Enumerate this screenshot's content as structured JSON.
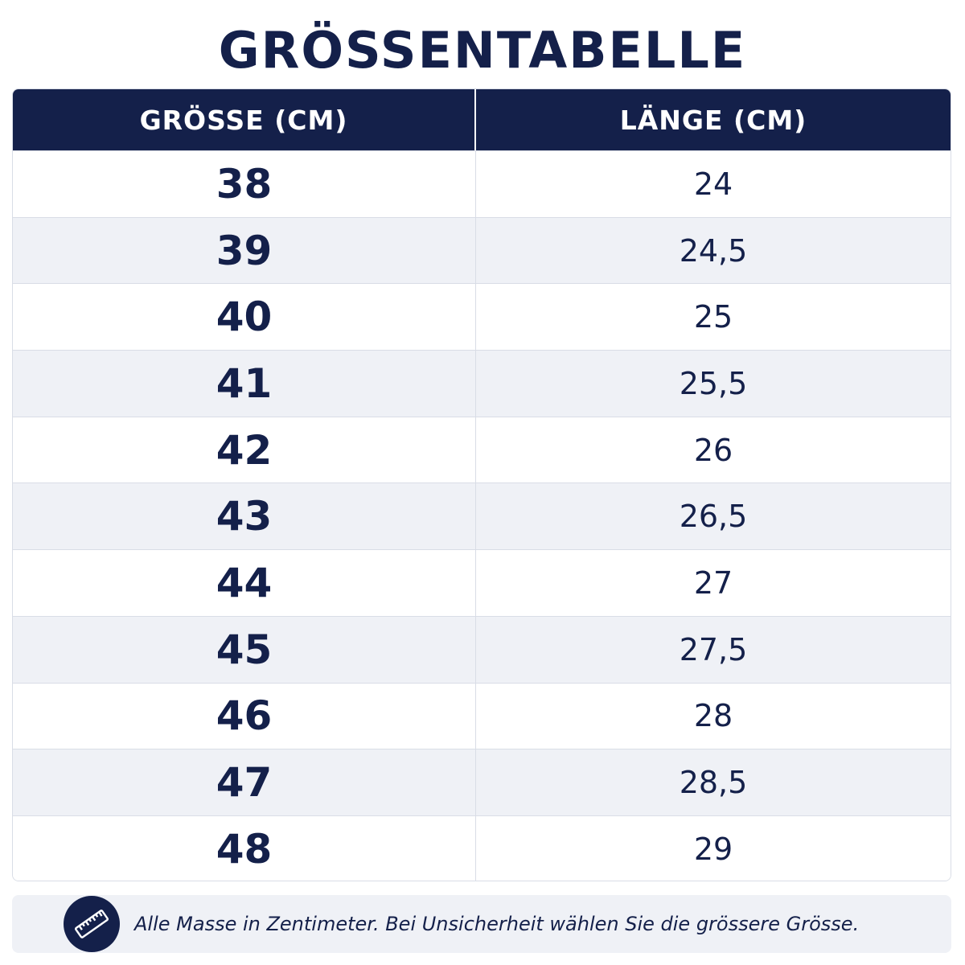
{
  "title": "GRÖSSENTABELLE",
  "table": {
    "headers": [
      "GRÖSSE (CM)",
      "LÄNGE (CM)"
    ],
    "rows": [
      {
        "size": "38",
        "length": "24"
      },
      {
        "size": "39",
        "length": "24,5"
      },
      {
        "size": "40",
        "length": "25"
      },
      {
        "size": "41",
        "length": "25,5"
      },
      {
        "size": "42",
        "length": "26"
      },
      {
        "size": "43",
        "length": "26,5"
      },
      {
        "size": "44",
        "length": "27"
      },
      {
        "size": "45",
        "length": "27,5"
      },
      {
        "size": "46",
        "length": "28"
      },
      {
        "size": "47",
        "length": "28,5"
      },
      {
        "size": "48",
        "length": "29"
      }
    ]
  },
  "footer": {
    "icon": "ruler-icon",
    "note": "Alle Masse in Zentimeter. Bei Unsicherheit wählen Sie die grössere Grösse."
  },
  "colors": {
    "navy": "#14204a",
    "stripe": "#eff1f6",
    "border": "#d9dde6"
  }
}
